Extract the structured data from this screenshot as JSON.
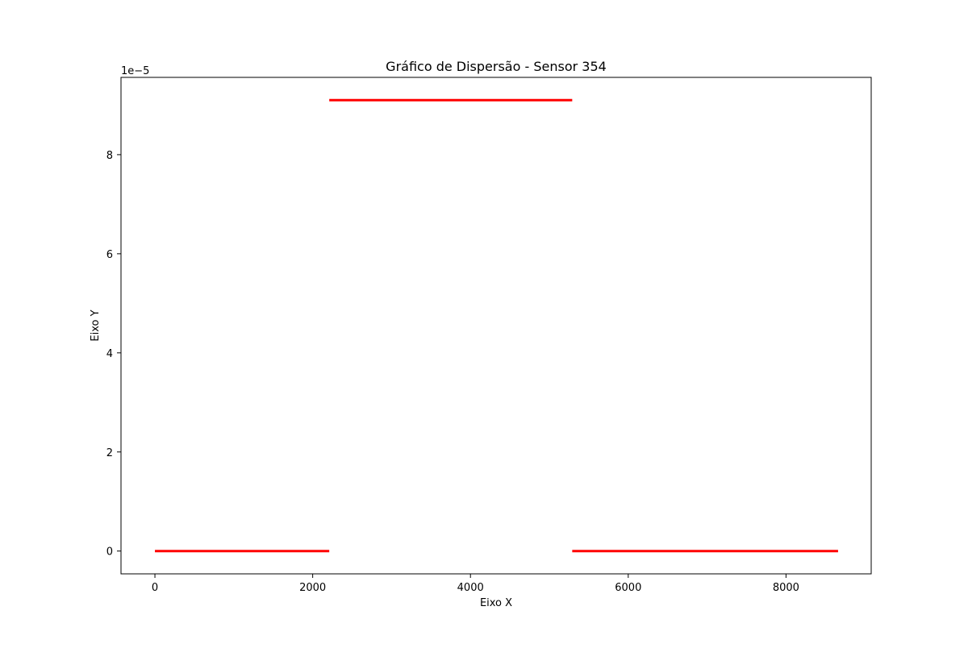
{
  "chart_data": {
    "type": "scatter",
    "title": "Gráfico de Dispersão - Sensor 354",
    "xlabel": "Eixo X",
    "ylabel": "Eixo Y",
    "y_offset_label": "1e−5",
    "y_scale_factor": 1e-05,
    "xlim": [
      -430,
      9080
    ],
    "ylim": [
      -4.6e-06,
      9.56e-05
    ],
    "x_ticks": [
      0,
      2000,
      4000,
      6000,
      8000
    ],
    "x_tick_labels": [
      "0",
      "2000",
      "4000",
      "6000",
      "8000"
    ],
    "y_ticks": [
      0,
      2e-05,
      4e-05,
      6e-05,
      8e-05
    ],
    "y_tick_labels": [
      "0",
      "2",
      "4",
      "6",
      "8"
    ],
    "grid": false,
    "marker_color": "#ff0000",
    "series": [
      {
        "segments": [
          {
            "x_start": 0,
            "x_end": 2210,
            "y": 0
          },
          {
            "x_start": 2210,
            "x_end": 5290,
            "y": 9.1e-05
          },
          {
            "x_start": 5290,
            "x_end": 8660,
            "y": 0
          }
        ]
      }
    ]
  }
}
